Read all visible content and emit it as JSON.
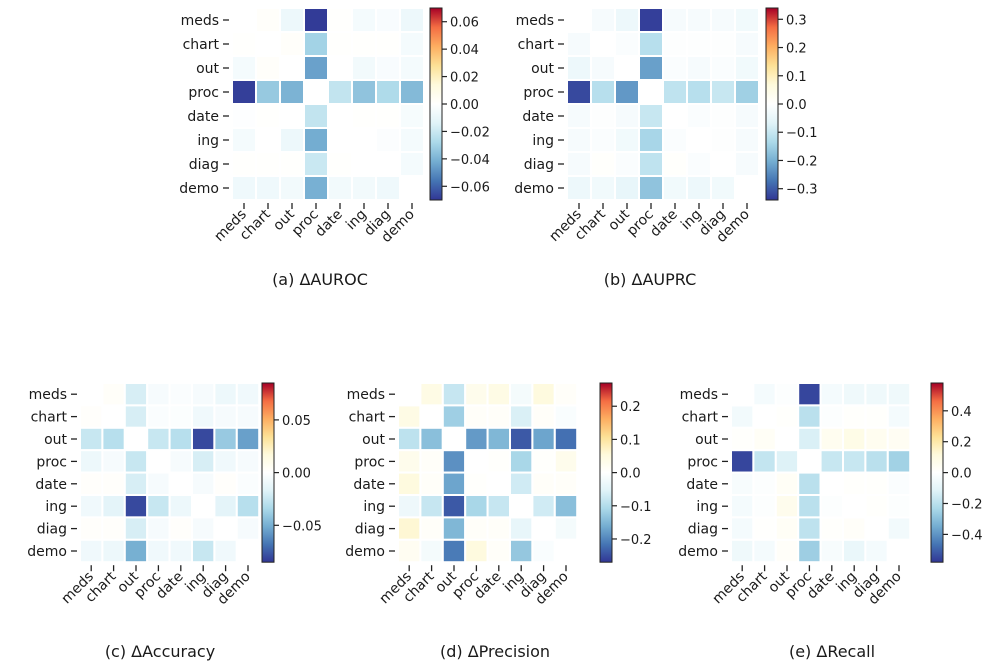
{
  "labels": [
    "meds",
    "chart",
    "out",
    "proc",
    "date",
    "ing",
    "diag",
    "demo"
  ],
  "chart_data": [
    {
      "type": "heatmap",
      "title": "(a) ΔAUROC",
      "vmin": -0.07,
      "vmax": 0.07,
      "colorbar_ticks": [
        0.06,
        0.04,
        0.02,
        0.0,
        -0.02,
        -0.04,
        -0.06
      ],
      "colorbar_tick_labels": [
        "0.06",
        "0.04",
        "0.02",
        "0.00",
        "−0.02",
        "−0.04",
        "−0.06"
      ],
      "values": [
        [
          null,
          0.002,
          -0.008,
          -0.069,
          0.001,
          -0.005,
          -0.003,
          -0.008
        ],
        [
          0.001,
          null,
          0.002,
          -0.03,
          0.001,
          0.001,
          0.001,
          -0.005
        ],
        [
          -0.005,
          0.002,
          null,
          -0.045,
          0.0,
          -0.006,
          -0.003,
          -0.005
        ],
        [
          -0.068,
          -0.033,
          -0.04,
          null,
          -0.022,
          -0.035,
          -0.027,
          -0.038
        ],
        [
          -0.001,
          0.001,
          0.0,
          -0.022,
          null,
          0.001,
          0.001,
          -0.004
        ],
        [
          -0.005,
          0.0,
          -0.008,
          -0.042,
          0.0,
          null,
          -0.002,
          -0.005
        ],
        [
          0.001,
          0.001,
          0.001,
          -0.02,
          0.001,
          0.0,
          null,
          -0.005
        ],
        [
          -0.007,
          -0.007,
          -0.006,
          -0.041,
          -0.006,
          -0.006,
          -0.007,
          null
        ]
      ]
    },
    {
      "type": "heatmap",
      "title": "(b) ΔAUPRC",
      "vmin": -0.34,
      "vmax": 0.34,
      "colorbar_ticks": [
        0.3,
        0.2,
        0.1,
        0.0,
        -0.1,
        -0.2,
        -0.3
      ],
      "colorbar_tick_labels": [
        "0.3",
        "0.2",
        "0.1",
        "0.0",
        "−0.1",
        "−0.2",
        "−0.3"
      ],
      "values": [
        [
          null,
          -0.02,
          -0.04,
          -0.33,
          -0.02,
          -0.02,
          -0.02,
          -0.03
        ],
        [
          -0.02,
          null,
          -0.01,
          -0.12,
          -0.005,
          -0.005,
          -0.005,
          -0.02
        ],
        [
          -0.04,
          -0.02,
          null,
          -0.22,
          -0.01,
          -0.02,
          -0.01,
          -0.03
        ],
        [
          -0.32,
          -0.12,
          -0.23,
          null,
          -0.11,
          -0.12,
          -0.1,
          -0.15
        ],
        [
          -0.02,
          -0.005,
          -0.02,
          -0.1,
          null,
          -0.01,
          -0.005,
          -0.02
        ],
        [
          -0.02,
          -0.01,
          -0.03,
          -0.14,
          -0.01,
          null,
          -0.005,
          -0.02
        ],
        [
          -0.02,
          0.005,
          -0.01,
          -0.11,
          0.005,
          -0.01,
          null,
          -0.02
        ],
        [
          -0.04,
          -0.03,
          -0.05,
          -0.17,
          -0.03,
          -0.04,
          -0.03,
          null
        ]
      ]
    },
    {
      "type": "heatmap",
      "title": "(c) ΔAccuracy",
      "vmin": -0.085,
      "vmax": 0.085,
      "colorbar_ticks": [
        0.05,
        0.0,
        -0.05
      ],
      "colorbar_tick_labels": [
        "0.05",
        "0.00",
        "−0.05"
      ],
      "values": [
        [
          null,
          0.003,
          -0.02,
          -0.005,
          -0.003,
          -0.005,
          -0.01,
          -0.008
        ],
        [
          0.002,
          null,
          -0.02,
          -0.003,
          -0.002,
          -0.008,
          -0.005,
          -0.005
        ],
        [
          -0.025,
          -0.03,
          null,
          -0.025,
          -0.03,
          -0.08,
          -0.04,
          -0.055
        ],
        [
          -0.01,
          -0.005,
          -0.025,
          null,
          -0.005,
          -0.02,
          -0.008,
          -0.005
        ],
        [
          0.002,
          0.002,
          -0.02,
          -0.005,
          null,
          -0.005,
          0.002,
          -0.003
        ],
        [
          -0.008,
          -0.015,
          -0.08,
          -0.025,
          -0.01,
          null,
          -0.015,
          -0.03
        ],
        [
          0.002,
          0.002,
          -0.02,
          -0.005,
          0.002,
          -0.005,
          null,
          -0.005
        ],
        [
          -0.008,
          -0.01,
          -0.05,
          -0.008,
          -0.008,
          -0.025,
          -0.008,
          null
        ]
      ]
    },
    {
      "type": "heatmap",
      "title": "(d) ΔPrecision",
      "vmin": -0.27,
      "vmax": 0.27,
      "colorbar_ticks": [
        0.2,
        0.1,
        0.0,
        -0.1,
        -0.2
      ],
      "colorbar_tick_labels": [
        "0.2",
        "0.1",
        "0.0",
        "−0.1",
        "−0.2"
      ],
      "values": [
        [
          null,
          0.04,
          -0.08,
          0.03,
          0.04,
          -0.02,
          0.05,
          0.01
        ],
        [
          0.04,
          null,
          -0.12,
          0.01,
          0.01,
          -0.06,
          0.01,
          -0.01
        ],
        [
          -0.09,
          -0.14,
          null,
          -0.18,
          -0.15,
          -0.24,
          -0.17,
          -0.22
        ],
        [
          0.03,
          0.01,
          -0.19,
          null,
          0.005,
          -0.11,
          0.005,
          0.03
        ],
        [
          0.05,
          0.01,
          -0.17,
          0.005,
          null,
          -0.07,
          0.01,
          0.01
        ],
        [
          -0.03,
          -0.08,
          -0.24,
          -0.11,
          -0.08,
          null,
          -0.07,
          -0.14
        ],
        [
          0.06,
          0.01,
          -0.15,
          0.01,
          0.01,
          -0.04,
          null,
          -0.02
        ],
        [
          0.02,
          -0.02,
          -0.21,
          0.05,
          0.01,
          -0.13,
          -0.01,
          null
        ]
      ]
    },
    {
      "type": "heatmap",
      "title": "(e) ΔRecall",
      "vmin": -0.58,
      "vmax": 0.58,
      "colorbar_ticks": [
        0.4,
        0.2,
        0.0,
        -0.2,
        -0.4
      ],
      "colorbar_tick_labels": [
        "0.4",
        "0.2",
        "0.0",
        "−0.2",
        "−0.4"
      ],
      "values": [
        [
          null,
          -0.04,
          -0.01,
          -0.55,
          -0.04,
          -0.06,
          -0.06,
          -0.06
        ],
        [
          -0.05,
          null,
          0.01,
          -0.2,
          -0.01,
          0.01,
          0.01,
          -0.04
        ],
        [
          0.01,
          0.03,
          null,
          -0.13,
          0.05,
          0.08,
          0.05,
          0.04
        ],
        [
          -0.55,
          -0.18,
          -0.12,
          null,
          -0.17,
          -0.17,
          -0.2,
          -0.25
        ],
        [
          -0.03,
          -0.01,
          0.03,
          -0.2,
          null,
          0.01,
          0.01,
          -0.02
        ],
        [
          -0.04,
          -0.01,
          0.06,
          -0.2,
          -0.01,
          null,
          0.01,
          -0.01
        ],
        [
          -0.04,
          0.005,
          0.03,
          -0.19,
          0.01,
          0.02,
          null,
          -0.05
        ],
        [
          -0.06,
          -0.04,
          0.02,
          -0.26,
          -0.03,
          -0.08,
          -0.04,
          null
        ]
      ]
    }
  ]
}
